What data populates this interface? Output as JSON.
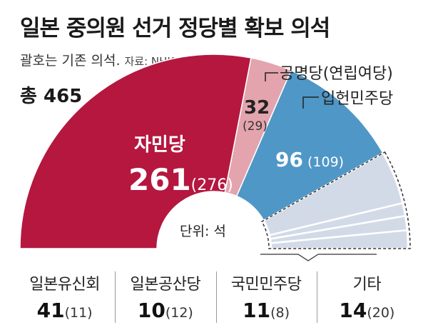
{
  "header": {
    "title": "일본 중의원 선거 정당별 확보 의석",
    "subtitle": "괄호는 기존 의석.",
    "source": "자료: NHK",
    "total": "총 465"
  },
  "unit_label": "단위: 석",
  "colors": {
    "ldp": "#b5173f",
    "komeito": "#e3a4ae",
    "cdp": "#4f97c7",
    "others": "#d3dae7"
  },
  "chart_data": {
    "type": "pie",
    "subtype": "half-donut",
    "total": 465,
    "series": [
      {
        "name": "자민당",
        "value": 261,
        "previous": 276,
        "color": "#b5173f"
      },
      {
        "name": "공명당(연립여당)",
        "value": 32,
        "previous": 29,
        "color": "#e3a4ae"
      },
      {
        "name": "입헌민주당",
        "value": 96,
        "previous": 109,
        "color": "#4f97c7"
      },
      {
        "name": "일본유신회",
        "value": 41,
        "previous": 11,
        "color": "#d3dae7"
      },
      {
        "name": "일본공산당",
        "value": 10,
        "previous": 12,
        "color": "#d3dae7"
      },
      {
        "name": "국민민주당",
        "value": 11,
        "previous": 8,
        "color": "#d3dae7"
      },
      {
        "name": "기타",
        "value": 14,
        "previous": 20,
        "color": "#d3dae7"
      }
    ]
  },
  "labels": {
    "ldp_name": "자민당",
    "ldp_value": "261",
    "ldp_prev": "(276)",
    "komeito_name": "공명당(연립여당)",
    "komeito_value": "32",
    "komeito_prev": "(29)",
    "cdp_name": "입헌민주당",
    "cdp_value": "96",
    "cdp_prev": " (109)"
  },
  "others": [
    {
      "name": "일본유신회",
      "value": "41",
      "prev": "(11)"
    },
    {
      "name": "일본공산당",
      "value": "10",
      "prev": "(12)"
    },
    {
      "name": "국민민주당",
      "value": "11",
      "prev": "(8)"
    },
    {
      "name": "기타",
      "value": "14",
      "prev": "(20)"
    }
  ]
}
